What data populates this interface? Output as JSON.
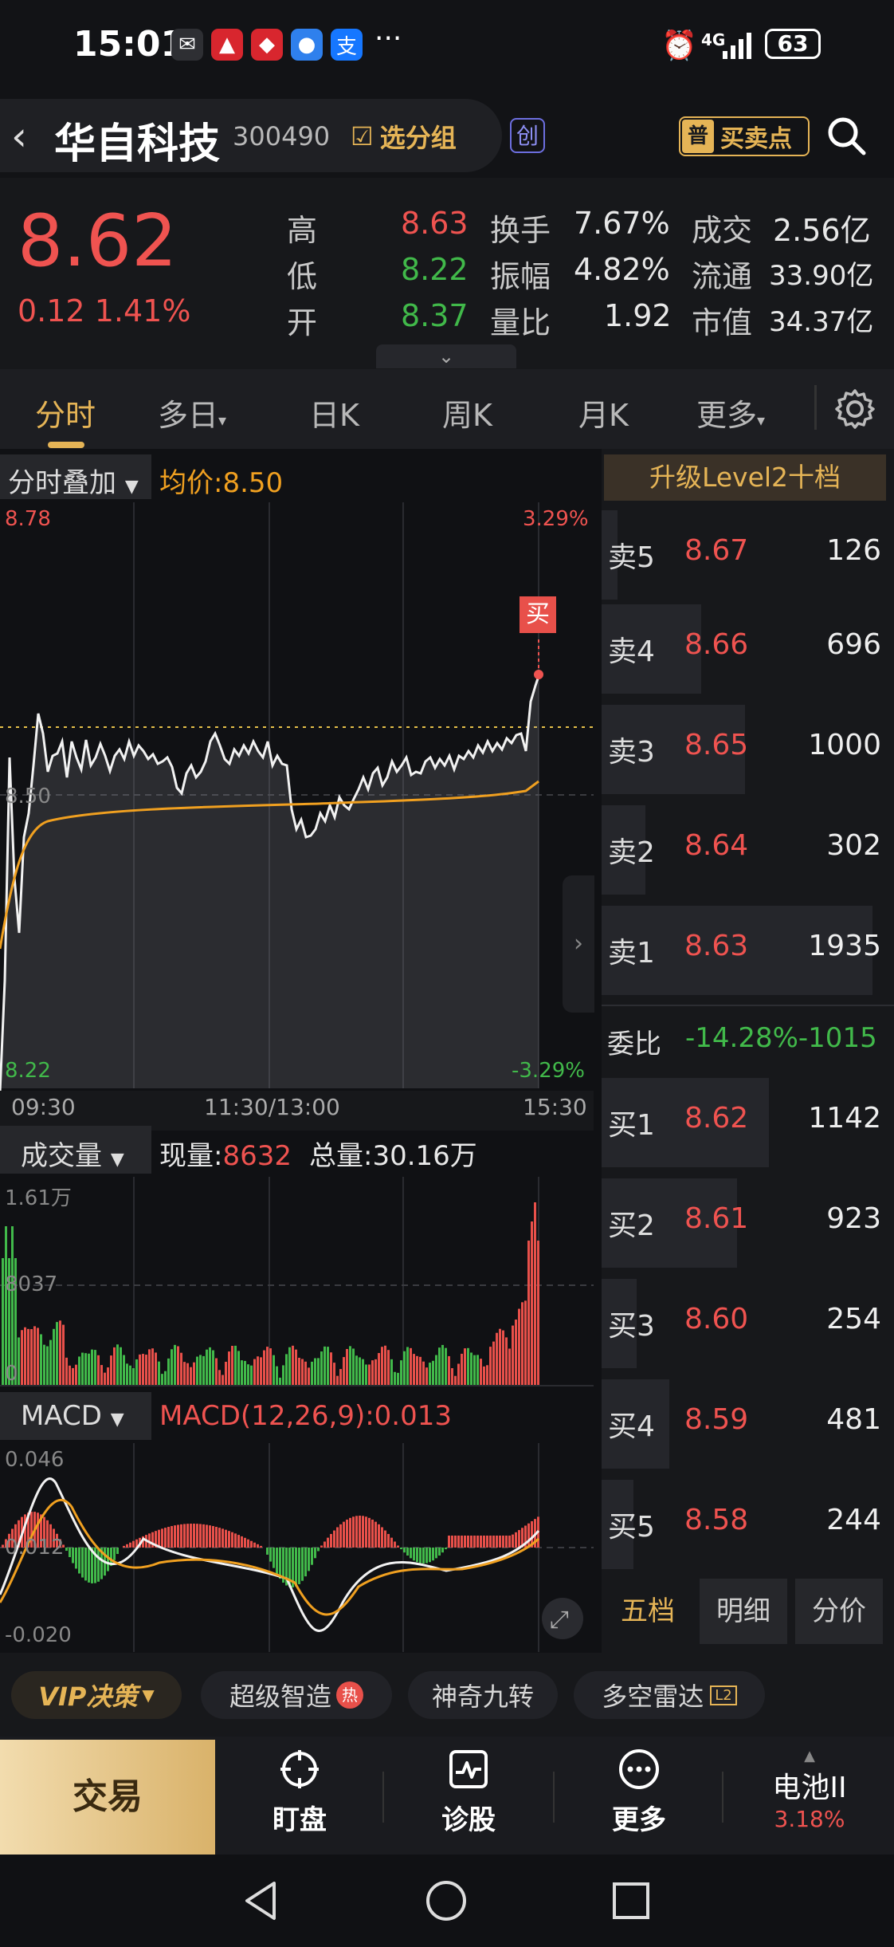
{
  "status_bar": {
    "time": "15:01",
    "network": "4G",
    "battery": "63"
  },
  "header": {
    "stock_name": "华自科技",
    "stock_code": "300490",
    "group_label": "选分组",
    "board_badge": "创",
    "buysell_badge": "普",
    "buysell_label": "买卖点"
  },
  "quote": {
    "price": "8.62",
    "change": "0.12",
    "change_pct": "1.41%",
    "fields": [
      {
        "label": "高",
        "value": "8.63"
      },
      {
        "label": "低",
        "value": "8.22"
      },
      {
        "label": "开",
        "value": "8.37"
      },
      {
        "label": "换手",
        "value": "7.67%"
      },
      {
        "label": "振幅",
        "value": "4.82%"
      },
      {
        "label": "量比",
        "value": "1.92"
      },
      {
        "label": "成交",
        "value": "2.56亿"
      },
      {
        "label": "流通",
        "value": "33.90亿"
      },
      {
        "label": "市值",
        "value": "34.37亿"
      }
    ]
  },
  "tabs": [
    "分时",
    "多日",
    "日K",
    "周K",
    "月K",
    "更多"
  ],
  "intraday": {
    "overlay_label": "分时叠加",
    "avg_label": "均价:8.50",
    "y_top": "8.78",
    "y_mid": "8.50",
    "y_bottom": "8.22",
    "pct_top": "3.29%",
    "pct_bottom": "-3.29%",
    "x_labels": [
      "09:30",
      "11:30/13:00",
      "15:30"
    ],
    "buy_marker": "买"
  },
  "volume": {
    "label": "成交量",
    "now_label": "现量:",
    "now_value": "8632",
    "total_label": "总量:30.16万",
    "y_top": "1.61万",
    "y_mid": "8037",
    "y_bottom": "0"
  },
  "macd": {
    "label": "MACD",
    "param": "MACD(12,26,9):0.013",
    "y_top": "0.046",
    "y_mid": "0.012",
    "y_bottom": "-0.020"
  },
  "order_book": {
    "upgrade_label": "升级Level2十档",
    "asks": [
      {
        "label": "卖5",
        "price": "8.67",
        "vol": "126"
      },
      {
        "label": "卖4",
        "price": "8.66",
        "vol": "696"
      },
      {
        "label": "卖3",
        "price": "8.65",
        "vol": "1000"
      },
      {
        "label": "卖2",
        "price": "8.64",
        "vol": "302"
      },
      {
        "label": "卖1",
        "price": "8.63",
        "vol": "1935"
      }
    ],
    "ratio_label": "委比",
    "ratio_value": "-14.28%-1015",
    "bids": [
      {
        "label": "买1",
        "price": "8.62",
        "vol": "1142"
      },
      {
        "label": "买2",
        "price": "8.61",
        "vol": "923"
      },
      {
        "label": "买3",
        "price": "8.60",
        "vol": "254"
      },
      {
        "label": "买4",
        "price": "8.59",
        "vol": "481"
      },
      {
        "label": "买5",
        "price": "8.58",
        "vol": "244"
      }
    ],
    "tabs": [
      "五档",
      "明细",
      "分价"
    ]
  },
  "tools": {
    "vip_label": "VIP决策",
    "items": [
      "超级智造",
      "神奇九转",
      "多空雷达"
    ],
    "hot_badge": "热",
    "l2_badge": "L2"
  },
  "bottom_nav": {
    "trade": "交易",
    "items": [
      "盯盘",
      "诊股",
      "更多"
    ],
    "battery_label": "电池II",
    "battery_pct": "3.18%"
  }
}
